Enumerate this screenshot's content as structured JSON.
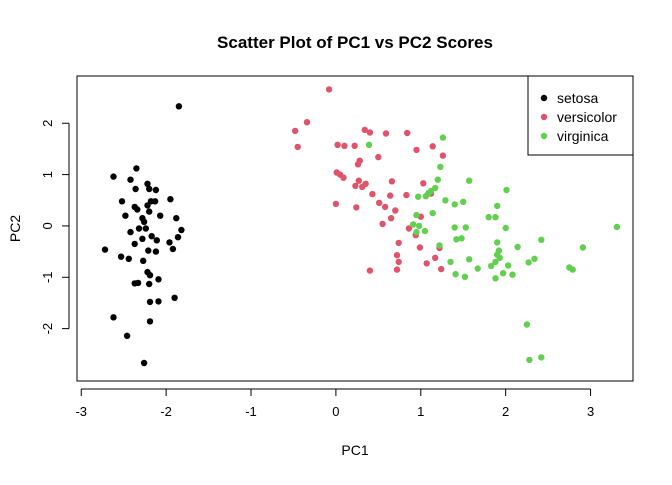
{
  "chart_data": {
    "type": "scatter",
    "title": "Scatter Plot of PC1 vs PC2 Scores",
    "xlabel": "PC1",
    "ylabel": "PC2",
    "xlim": [
      -3.05,
      3.5
    ],
    "ylim": [
      -3.02,
      2.92
    ],
    "x_ticks": [
      -3,
      -2,
      -1,
      0,
      1,
      2,
      3
    ],
    "y_ticks": [
      -2,
      -1,
      0,
      1,
      2
    ],
    "grid": false,
    "legend_position": "top-right",
    "series": [
      {
        "name": "setosa",
        "color": "#000000",
        "points": [
          [
            -1.85,
            2.33
          ],
          [
            -2.35,
            1.12
          ],
          [
            -2.62,
            0.96
          ],
          [
            -2.42,
            0.9
          ],
          [
            -2.22,
            0.82
          ],
          [
            -2.36,
            0.72
          ],
          [
            -2.2,
            0.72
          ],
          [
            -2.12,
            0.7
          ],
          [
            -2.52,
            0.48
          ],
          [
            -2.18,
            0.48
          ],
          [
            -2.13,
            0.48
          ],
          [
            -1.95,
            0.52
          ],
          [
            -2.22,
            0.4
          ],
          [
            -2.37,
            0.37
          ],
          [
            -2.34,
            0.32
          ],
          [
            -2.2,
            0.28
          ],
          [
            -2.48,
            0.2
          ],
          [
            -2.07,
            0.2
          ],
          [
            -2.28,
            0.15
          ],
          [
            -1.88,
            0.15
          ],
          [
            -2.26,
            0.08
          ],
          [
            -1.82,
            -0.08
          ],
          [
            -2.42,
            -0.12
          ],
          [
            -2.32,
            -0.05
          ],
          [
            -2.24,
            -0.05
          ],
          [
            -2.17,
            -0.2
          ],
          [
            -2.28,
            -0.25
          ],
          [
            -1.86,
            -0.22
          ],
          [
            -2.11,
            -0.28
          ],
          [
            -2.37,
            -0.35
          ],
          [
            -1.96,
            -0.32
          ],
          [
            -2.72,
            -0.46
          ],
          [
            -2.21,
            -0.48
          ],
          [
            -2.12,
            -0.5
          ],
          [
            -1.92,
            -0.45
          ],
          [
            -2.53,
            -0.6
          ],
          [
            -2.27,
            -0.68
          ],
          [
            -2.44,
            -0.64
          ],
          [
            -2.19,
            -0.96
          ],
          [
            -2.22,
            -0.9
          ],
          [
            -2.33,
            -1.11
          ],
          [
            -2.37,
            -1.12
          ],
          [
            -2.09,
            -1.04
          ],
          [
            -2.2,
            -1.13
          ],
          [
            -2.19,
            -1.48
          ],
          [
            -2.09,
            -1.47
          ],
          [
            -1.9,
            -1.4
          ],
          [
            -2.62,
            -1.78
          ],
          [
            -2.19,
            -1.86
          ],
          [
            -2.46,
            -2.14
          ],
          [
            -2.26,
            -2.67
          ]
        ]
      },
      {
        "name": "versicolor",
        "color": "#DF536B",
        "points": [
          [
            -0.08,
            2.66
          ],
          [
            0.34,
            1.87
          ],
          [
            -0.48,
            1.85
          ],
          [
            -0.34,
            2.02
          ],
          [
            0.4,
            1.82
          ],
          [
            0.59,
            1.8
          ],
          [
            0.84,
            1.81
          ],
          [
            -0.45,
            1.54
          ],
          [
            1.26,
            1.37
          ],
          [
            1.14,
            1.55
          ],
          [
            0.02,
            1.58
          ],
          [
            0.1,
            1.56
          ],
          [
            0.22,
            1.56
          ],
          [
            0.5,
            1.34
          ],
          [
            0.95,
            1.48
          ],
          [
            0.28,
            1.27
          ],
          [
            0.26,
            1.2
          ],
          [
            0.01,
            1.04
          ],
          [
            0.05,
            1.0
          ],
          [
            0.09,
            0.94
          ],
          [
            0.27,
            0.88
          ],
          [
            0.66,
            0.87
          ],
          [
            0.35,
            0.82
          ],
          [
            1.03,
            0.83
          ],
          [
            0.31,
            0.76
          ],
          [
            0.23,
            0.78
          ],
          [
            0.43,
            0.62
          ],
          [
            0.64,
            0.59
          ],
          [
            0.83,
            0.6
          ],
          [
            1.12,
            0.63
          ],
          [
            0.0,
            0.43
          ],
          [
            0.24,
            0.36
          ],
          [
            0.51,
            0.45
          ],
          [
            0.58,
            0.37
          ],
          [
            0.7,
            0.3
          ],
          [
            1.0,
            0.18
          ],
          [
            0.65,
            0.15
          ],
          [
            0.55,
            0.04
          ],
          [
            0.86,
            -0.05
          ],
          [
            0.94,
            -0.18
          ],
          [
            0.74,
            -0.33
          ],
          [
            0.99,
            -0.42
          ],
          [
            1.22,
            -0.43
          ],
          [
            0.72,
            -0.57
          ],
          [
            1.17,
            -0.62
          ],
          [
            0.74,
            -0.7
          ],
          [
            1.07,
            -0.73
          ],
          [
            0.4,
            -0.87
          ],
          [
            0.72,
            -0.85
          ],
          [
            1.24,
            -0.84
          ]
        ]
      },
      {
        "name": "virginica",
        "color": "#61D04F",
        "points": [
          [
            1.26,
            1.72
          ],
          [
            0.39,
            1.58
          ],
          [
            1.23,
            1.15
          ],
          [
            1.57,
            0.88
          ],
          [
            1.2,
            0.9
          ],
          [
            1.17,
            0.74
          ],
          [
            1.12,
            0.68
          ],
          [
            1.09,
            0.64
          ],
          [
            2.01,
            0.7
          ],
          [
            1.06,
            0.58
          ],
          [
            0.97,
            0.57
          ],
          [
            1.29,
            0.5
          ],
          [
            1.5,
            0.47
          ],
          [
            1.4,
            0.42
          ],
          [
            1.9,
            0.39
          ],
          [
            1.8,
            0.17
          ],
          [
            1.88,
            0.17
          ],
          [
            1.14,
            0.25
          ],
          [
            0.95,
            0.21
          ],
          [
            0.91,
            0.03
          ],
          [
            0.98,
            0.0
          ],
          [
            1.05,
            -0.1
          ],
          [
            1.4,
            -0.03
          ],
          [
            1.53,
            -0.03
          ],
          [
            3.31,
            -0.02
          ],
          [
            2.0,
            -0.04
          ],
          [
            0.95,
            -0.12
          ],
          [
            1.42,
            -0.26
          ],
          [
            1.48,
            -0.24
          ],
          [
            1.9,
            -0.32
          ],
          [
            2.42,
            -0.27
          ],
          [
            1.22,
            -0.38
          ],
          [
            2.14,
            -0.41
          ],
          [
            2.91,
            -0.42
          ],
          [
            1.92,
            -0.48
          ],
          [
            1.9,
            -0.56
          ],
          [
            1.93,
            -0.62
          ],
          [
            1.57,
            -0.65
          ],
          [
            1.35,
            -0.7
          ],
          [
            1.88,
            -0.7
          ],
          [
            1.83,
            -0.78
          ],
          [
            2.03,
            -0.77
          ],
          [
            1.67,
            -0.83
          ],
          [
            1.41,
            -0.94
          ],
          [
            2.34,
            -0.64
          ],
          [
            2.75,
            -0.81
          ],
          [
            2.79,
            -0.85
          ],
          [
            2.27,
            -0.71
          ],
          [
            1.52,
            -0.99
          ],
          [
            1.88,
            -1.02
          ],
          [
            1.97,
            -0.92
          ],
          [
            2.08,
            -0.95
          ],
          [
            2.25,
            -1.92
          ],
          [
            2.28,
            -2.61
          ],
          [
            2.42,
            -2.56
          ]
        ]
      }
    ]
  }
}
